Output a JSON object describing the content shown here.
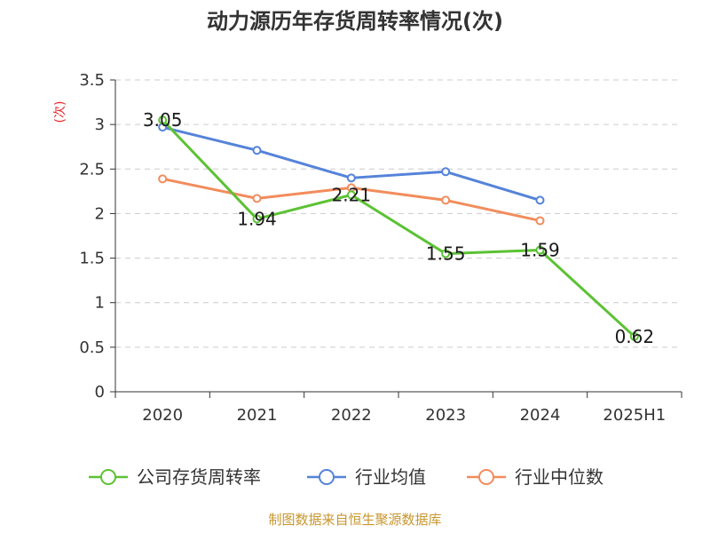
{
  "chart_data": {
    "type": "line",
    "title": "动力源历年存货周转率情况(次)",
    "ylabel": "(次)",
    "categories": [
      "2020",
      "2021",
      "2022",
      "2023",
      "2024",
      "2025H1"
    ],
    "ylim": [
      0,
      3.5
    ],
    "yticks": [
      0,
      0.5,
      1,
      1.5,
      2,
      2.5,
      3,
      3.5
    ],
    "ytick_labels": [
      "0",
      "0.5",
      "1",
      "1.5",
      "2",
      "2.5",
      "3",
      "3.5"
    ],
    "grid": true,
    "legend_position": "bottom",
    "series": [
      {
        "name": "公司存货周转率",
        "color": "#5cc234",
        "values": [
          3.05,
          1.94,
          2.21,
          1.55,
          1.59,
          0.62
        ],
        "labels": [
          "3.05",
          "1.94",
          "2.21",
          "1.55",
          "1.59",
          "0.62"
        ]
      },
      {
        "name": "行业均值",
        "color": "#5583d9",
        "values": [
          2.97,
          2.71,
          2.4,
          2.47,
          2.15,
          null
        ]
      },
      {
        "name": "行业中位数",
        "color": "#f28c5c",
        "values": [
          2.39,
          2.17,
          2.29,
          2.15,
          1.92,
          null
        ]
      }
    ]
  },
  "footer": {
    "source": "制图数据来自恒生聚源数据库"
  }
}
